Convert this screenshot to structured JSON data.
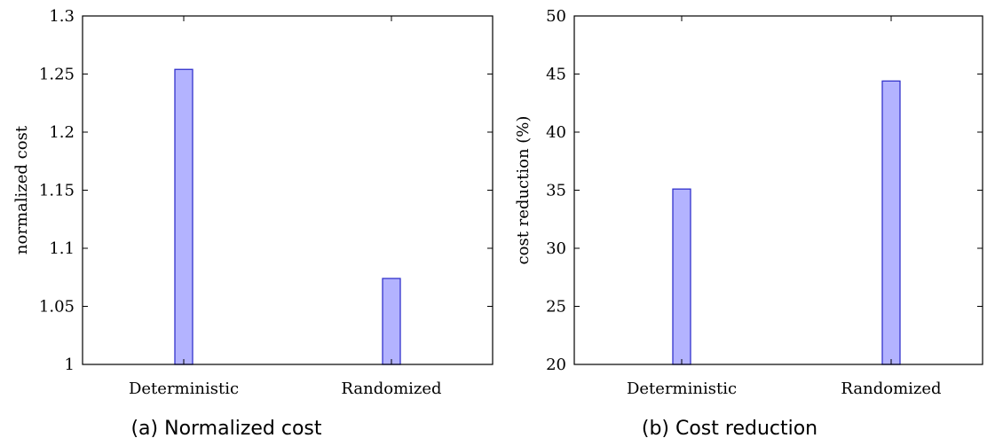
{
  "chart_data": [
    {
      "type": "bar",
      "caption": "(a) Normalized cost",
      "categories": [
        "Deterministic",
        "Randomized"
      ],
      "values": [
        1.254,
        1.074
      ],
      "ylabel": "normalized cost",
      "xlabel": "",
      "ylim": [
        1,
        1.3
      ],
      "yticks": [
        1,
        1.05,
        1.1,
        1.15,
        1.2,
        1.25,
        1.3
      ],
      "ytick_labels": [
        "1",
        "1.05",
        "1.1",
        "1.15",
        "1.2",
        "1.25",
        "1.3"
      ],
      "grid": false,
      "bar_fill": "#b3b3ff",
      "bar_stroke": "#3333cc"
    },
    {
      "type": "bar",
      "caption": "(b) Cost reduction",
      "categories": [
        "Deterministic",
        "Randomized"
      ],
      "values": [
        35.1,
        44.4
      ],
      "ylabel": "cost reduction (%)",
      "xlabel": "",
      "ylim": [
        20,
        50
      ],
      "yticks": [
        20,
        25,
        30,
        35,
        40,
        45,
        50
      ],
      "ytick_labels": [
        "20",
        "25",
        "30",
        "35",
        "40",
        "45",
        "50"
      ],
      "grid": false,
      "bar_fill": "#b3b3ff",
      "bar_stroke": "#3333cc"
    }
  ]
}
